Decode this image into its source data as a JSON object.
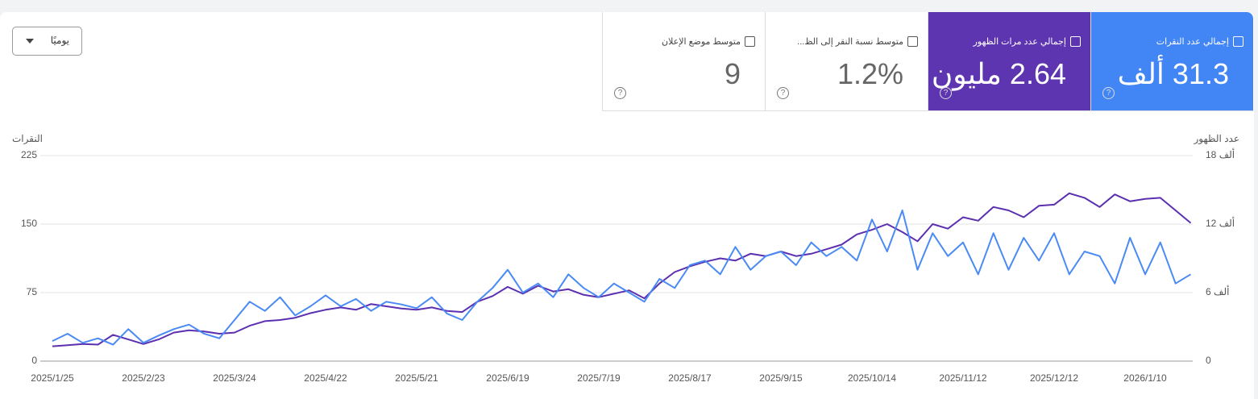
{
  "toolbar": {
    "period": "يوميًا"
  },
  "cards": [
    {
      "label": "إجمالي عدد النقرات",
      "value": "31.3 ألف"
    },
    {
      "label": "إجمالي عدد مرات الظهور",
      "value": "2.64 مليون"
    },
    {
      "label": "متوسط نسبة النقر إلى الظ...",
      "value": "1.2%"
    },
    {
      "label": "متوسط موضع الإعلان",
      "value": "9"
    }
  ],
  "chart_data": {
    "type": "line",
    "y_label": "النقرات",
    "y2_label": "عدد الظهور",
    "categories": [
      "2025/1/25",
      null,
      null,
      null,
      null,
      null,
      "2025/2/23",
      null,
      null,
      null,
      null,
      null,
      "2025/3/24",
      null,
      null,
      null,
      null,
      null,
      "2025/4/22",
      null,
      null,
      null,
      null,
      null,
      "2025/5/21",
      null,
      null,
      null,
      null,
      null,
      "2025/6/19",
      null,
      null,
      null,
      null,
      null,
      "2025/7/19",
      null,
      null,
      null,
      null,
      null,
      "2025/8/17",
      null,
      null,
      null,
      null,
      null,
      "2025/9/15",
      null,
      null,
      null,
      null,
      null,
      "2025/10/14",
      null,
      null,
      null,
      null,
      null,
      "2025/11/12",
      null,
      null,
      null,
      null,
      null,
      "2025/12/12",
      null,
      null,
      null,
      null,
      null,
      "2026/1/10",
      null,
      null,
      null
    ],
    "ylim": [
      0,
      225
    ],
    "yticks": [
      0,
      75,
      150,
      225
    ],
    "y2lim": [
      0,
      18000
    ],
    "y2ticks": [
      0,
      {
        "value": 6000,
        "label": "6 ألف"
      },
      {
        "value": 12000,
        "label": "12 ألف"
      },
      {
        "value": 18000,
        "label": "18 ألف"
      }
    ],
    "grid": true,
    "series": [
      {
        "name": "إجمالي عدد النقرات",
        "color": "#4a8af4",
        "values": [
          22,
          30,
          20,
          25,
          18,
          35,
          20,
          28,
          35,
          40,
          30,
          25,
          45,
          65,
          55,
          70,
          50,
          60,
          72,
          60,
          68,
          55,
          65,
          62,
          58,
          70,
          52,
          45,
          65,
          80,
          100,
          75,
          85,
          70,
          95,
          80,
          70,
          85,
          75,
          65,
          90,
          80,
          105,
          110,
          95,
          125,
          100,
          115,
          120,
          105,
          130,
          115,
          125,
          110,
          155,
          120,
          165,
          100,
          140,
          115,
          130,
          95,
          140,
          100,
          135,
          110,
          140,
          95,
          120,
          115,
          85,
          135,
          95,
          130,
          85,
          95
        ]
      },
      {
        "name": "إجمالي عدد مرات الظهور",
        "color": "#5b2fb0",
        "axis": "y2",
        "values": [
          1300,
          1400,
          1500,
          1450,
          2300,
          1900,
          1500,
          1900,
          2500,
          2700,
          2600,
          2400,
          2500,
          3100,
          3500,
          3600,
          3800,
          4200,
          4500,
          4700,
          4500,
          5000,
          4800,
          4600,
          4500,
          4700,
          4400,
          4300,
          5200,
          5700,
          6500,
          5900,
          6600,
          6100,
          6300,
          5800,
          5600,
          5900,
          6200,
          5500,
          6800,
          7800,
          8300,
          8700,
          9000,
          8800,
          9400,
          9200,
          9600,
          9200,
          9400,
          9800,
          10200,
          11100,
          11500,
          12000,
          11300,
          10500,
          12000,
          11600,
          12600,
          12300,
          13500,
          13200,
          12600,
          13600,
          13700,
          14700,
          14300,
          13500,
          14600,
          14000,
          14200,
          14300,
          13200,
          12100
        ]
      }
    ]
  }
}
